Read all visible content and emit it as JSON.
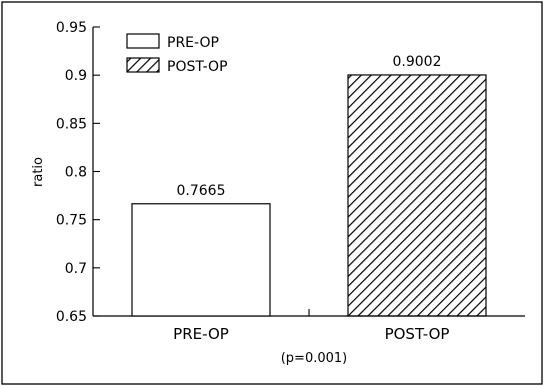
{
  "chart_data": {
    "type": "bar",
    "categories": [
      "PRE-OP",
      "POST-OP"
    ],
    "values": [
      0.7665,
      0.9002
    ],
    "data_labels": [
      "0.7665",
      "0.9002"
    ],
    "series": [
      {
        "name": "PRE-OP",
        "fill": "white"
      },
      {
        "name": "POST-OP",
        "fill": "diagonal-hatch"
      }
    ],
    "ylabel": "ratio",
    "xlabel": "",
    "ylim": [
      0.65,
      0.95
    ],
    "yticks": [
      0.65,
      0.7,
      0.75,
      0.8,
      0.85,
      0.9,
      0.95
    ],
    "ytick_labels": [
      "0.65",
      "0.7",
      "0.75",
      "0.8",
      "0.85",
      "0.9",
      "0.95"
    ],
    "annotation": "(p=0.001)",
    "legend_position": "top-left",
    "grid": false
  },
  "colors": {
    "line": "#000000",
    "background": "#ffffff"
  }
}
